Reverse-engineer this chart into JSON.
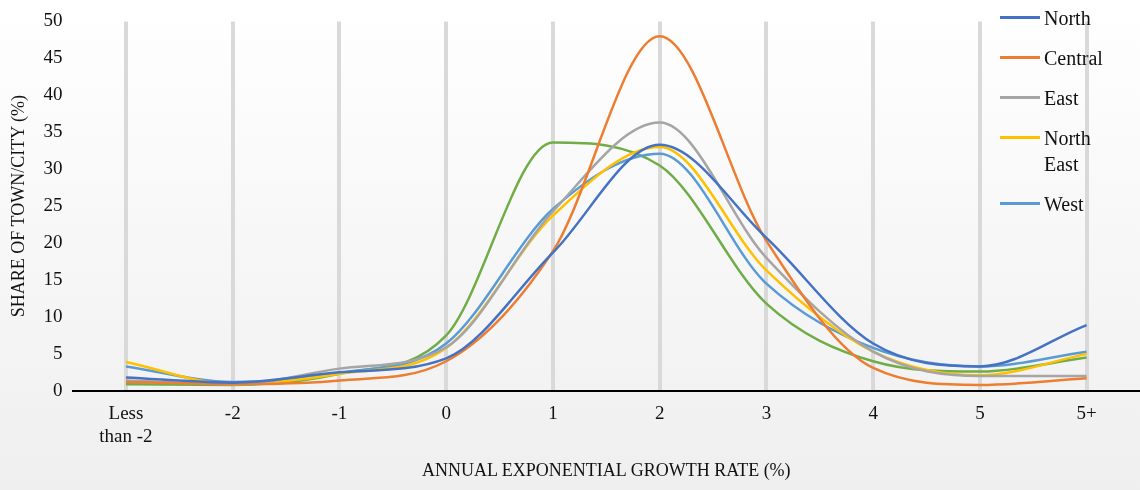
{
  "chart_data": {
    "type": "line",
    "xlabel": "ANNUAL EXPONENTIAL GROWTH RATE (%)",
    "ylabel": "SHARE OF TOWN/CITY (%)",
    "categories": [
      "Less than -2",
      "-2",
      "-1",
      "0",
      "1",
      "2",
      "3",
      "4",
      "5",
      "5+"
    ],
    "ylim": [
      0,
      50
    ],
    "yticks": [
      0,
      5,
      10,
      15,
      20,
      25,
      30,
      35,
      40,
      45,
      50
    ],
    "grid": "x",
    "legend": "top right",
    "marker": "none",
    "line_style": "solid",
    "series": [
      {
        "name": "North",
        "color": "#4472c4",
        "values": [
          1.8,
          1.1,
          2.5,
          4.4,
          18.7,
          33.3,
          20.7,
          6.4,
          3.3,
          8.9
        ]
      },
      {
        "name": "Central",
        "color": "#ed7d31",
        "values": [
          1.2,
          0.9,
          1.4,
          4.0,
          18.9,
          48.0,
          20.3,
          3.1,
          0.8,
          1.7
        ]
      },
      {
        "name": "East",
        "color": "#a5a5a5",
        "values": [
          1.4,
          0.9,
          3.0,
          5.9,
          24.3,
          36.3,
          18.0,
          5.3,
          2.0,
          2.0
        ]
      },
      {
        "name": "North East",
        "color": "#ffc000",
        "values": [
          3.9,
          0.9,
          2.3,
          5.8,
          23.7,
          33.0,
          16.3,
          5.3,
          2.1,
          5.0
        ]
      },
      {
        "name": "West",
        "color": "#5b9bd5",
        "values": [
          3.3,
          1.2,
          2.4,
          6.4,
          24.6,
          32.1,
          14.5,
          5.8,
          3.3,
          5.3
        ]
      },
      {
        "color": "#70ad47",
        "values": [
          0.9,
          0.8,
          2.3,
          7.5,
          33.6,
          30.5,
          11.8,
          4.0,
          2.6,
          4.5
        ]
      }
    ]
  }
}
